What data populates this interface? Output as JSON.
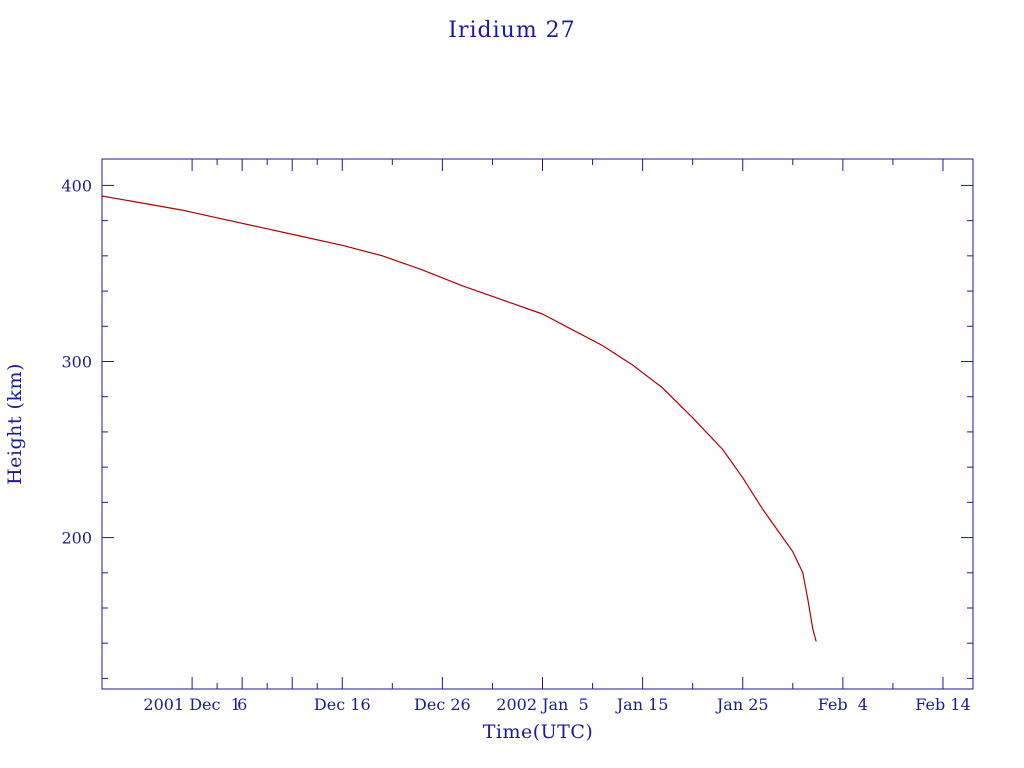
{
  "chart_data": {
    "type": "line",
    "title": "Iridium 27",
    "xlabel": "Time(UTC)",
    "ylabel": "Height (km)",
    "x_unit": "date",
    "xlim": [
      "2001-11-22",
      "2002-02-17"
    ],
    "ylim": [
      114,
      415
    ],
    "x_ticks": [
      {
        "date": "2001-12-01",
        "label": "2001 Dec  1"
      },
      {
        "date": "2001-12-06",
        "label": "6"
      },
      {
        "date": "2001-12-11",
        "label": ""
      },
      {
        "date": "2001-12-16",
        "label": "Dec 16"
      },
      {
        "date": "2001-12-26",
        "label": "Dec 26"
      },
      {
        "date": "2002-01-05",
        "label": "2002 Jan  5"
      },
      {
        "date": "2002-01-15",
        "label": "Jan 15"
      },
      {
        "date": "2002-01-25",
        "label": "Jan 25"
      },
      {
        "date": "2002-02-04",
        "label": "Feb  4"
      },
      {
        "date": "2002-02-14",
        "label": "Feb 14"
      }
    ],
    "y_ticks": [
      {
        "value": 200,
        "label": "200"
      },
      {
        "value": 300,
        "label": "300"
      },
      {
        "value": 400,
        "label": "400"
      }
    ],
    "series": [
      {
        "color": "#b00000",
        "x": [
          "2001-11-22",
          "2001-11-26",
          "2001-11-30",
          "2001-12-04",
          "2001-12-08",
          "2001-12-12",
          "2001-12-16",
          "2001-12-20",
          "2001-12-24",
          "2001-12-28",
          "2002-01-01",
          "2002-01-05",
          "2002-01-08",
          "2002-01-11",
          "2002-01-14",
          "2002-01-17",
          "2002-01-20",
          "2002-01-23",
          "2002-01-25",
          "2002-01-27",
          "2002-01-29",
          "2002-01-30",
          "2002-01-31",
          "2002-01-31T12:00",
          "2002-02-01",
          "2002-02-01T08:00"
        ],
        "y": [
          394,
          390,
          386,
          381,
          376,
          371,
          366,
          360,
          352,
          343,
          335,
          327,
          318,
          309,
          298,
          285,
          268,
          250,
          234,
          216,
          200,
          192,
          180,
          165,
          148,
          141
        ]
      }
    ],
    "grid": false,
    "legend": "none"
  }
}
